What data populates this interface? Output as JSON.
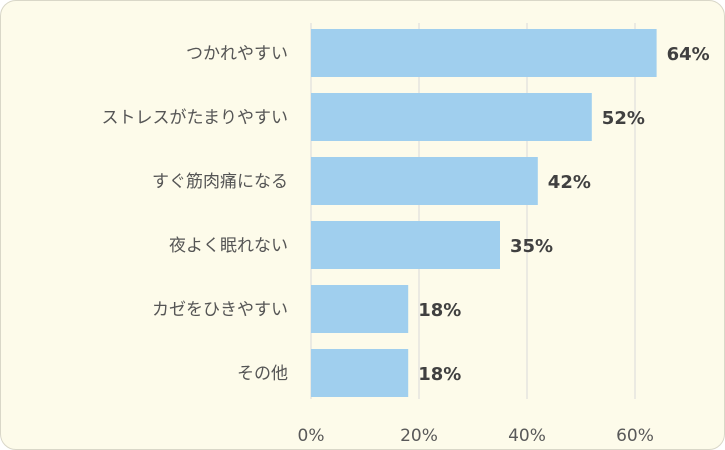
{
  "chart_data": {
    "type": "bar",
    "orientation": "horizontal",
    "categories": [
      "つかれやすい",
      "ストレスがたまりやすい",
      "すぐ筋肉痛になる",
      "夜よく眠れない",
      "カゼをひきやすい",
      "その他"
    ],
    "values": [
      64,
      52,
      42,
      35,
      18,
      18
    ],
    "data_labels": [
      "64%",
      "52%",
      "42%",
      "35%",
      "18%",
      "18%"
    ],
    "xlim": [
      0,
      60
    ],
    "xticks": [
      0,
      20,
      40,
      60
    ],
    "xtick_labels": [
      "0%",
      "20%",
      "40%",
      "60%"
    ],
    "grid": true,
    "bar_color": "#a0cfee",
    "background_color": "#fdfbea"
  }
}
